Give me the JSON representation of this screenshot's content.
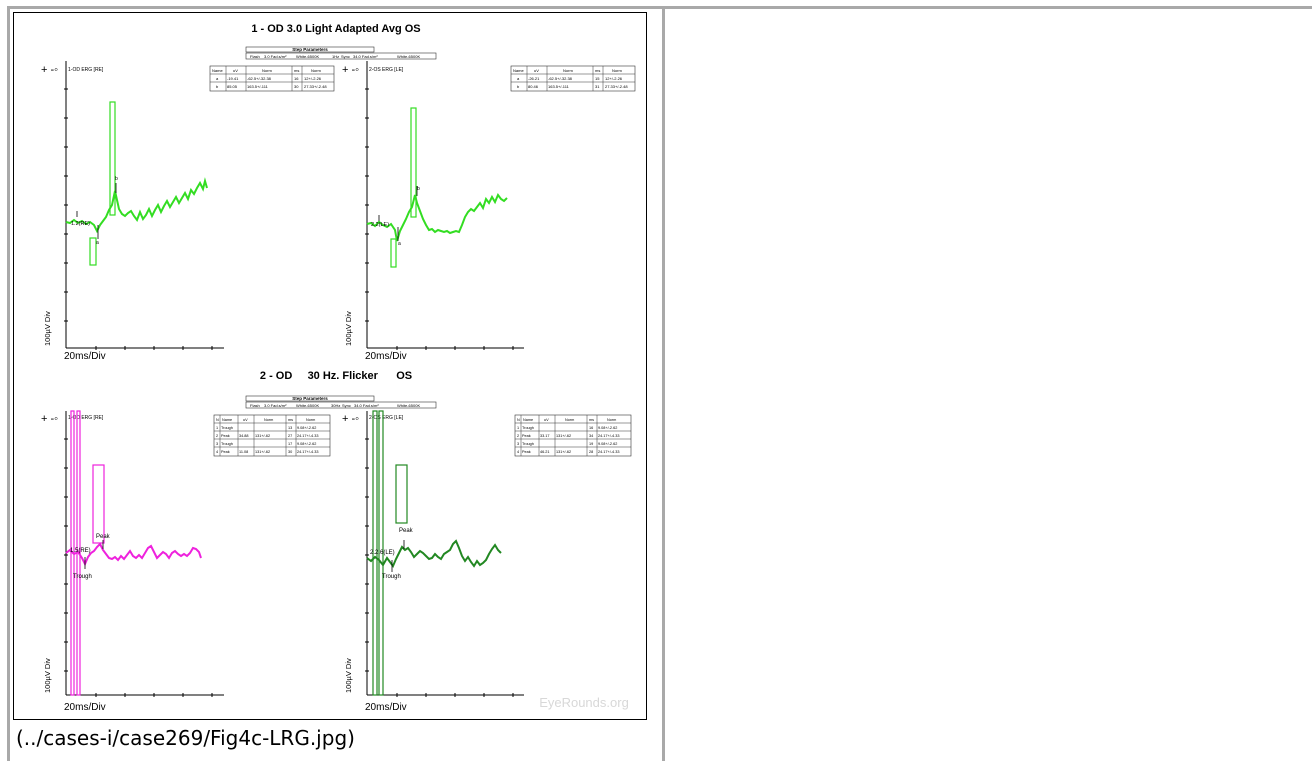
{
  "caption": "(../cases-i/case269/Fig4c-LRG.jpg)",
  "figure": {
    "watermark": "EyeRounds.org",
    "panel1": {
      "title": "1 - OD  3.0 Light Adapted Avg   OS",
      "step_params_title": "Step Parameters",
      "step_params_cells": [
        "Flash",
        "3.0 Fad.s/m²",
        "White-6500K",
        "1Hz",
        "Sync",
        "34.0 Fad.s/m²",
        "White-6500K"
      ],
      "left_trace_label": "1-OD ERG [RE]",
      "right_trace_label": "2-OS ERG [LE]",
      "left_marker": "1.2(RE)",
      "right_marker": "2.2(LE)",
      "wave_a": "a",
      "wave_b": "b",
      "x_scale": "20ms/Div",
      "y_scale": "100µV Div",
      "left_table": {
        "headers": [
          "Name",
          "uV",
          "Norm",
          "ms",
          "Norm"
        ],
        "rows": [
          [
            "a",
            "-19.41",
            "-62.5+/-32.38",
            "16",
            "12+/-2.26"
          ],
          [
            "b",
            "85.05",
            "163.5+/-111",
            "30",
            "27.33+/-2.48"
          ]
        ]
      },
      "right_table": {
        "headers": [
          "Name",
          "uV",
          "Norm",
          "ms",
          "Norm"
        ],
        "rows": [
          [
            "a",
            "-26.21",
            "-62.5+/-32.38",
            "15",
            "12+/-2.26"
          ],
          [
            "b",
            "80.46",
            "163.5+/-111",
            "31",
            "27.33+/-2.48"
          ]
        ]
      }
    },
    "panel2": {
      "title": "2 - OD     30 Hz. Flicker      OS",
      "step_params_title": "Step Parameters",
      "step_params_cells": [
        "Flash",
        "3.0 Fad.s/m²",
        "White-6500K",
        "30Hz",
        "Sync",
        "34.0 Fad.s/m²",
        "White-6500K"
      ],
      "left_trace_label": "1-OD ERG [RE]",
      "right_trace_label": "2-OS ERG [LE]",
      "left_marker": "1.5(RE)",
      "right_marker": "2.2.6(LE)",
      "peak": "Peak",
      "trough": "Trough",
      "x_scale": "20ms/Div",
      "y_scale": "100µV Div",
      "left_table": {
        "headers": [
          "N",
          "Name",
          "uV",
          "Norm",
          "ms",
          "Norm"
        ],
        "rows": [
          [
            "1",
            "Trough",
            "",
            "",
            "13",
            "9.08+/-2.62"
          ],
          [
            "2",
            "Peak",
            "34.88",
            "131+/-62",
            "27",
            "24.17+/-4.33"
          ],
          [
            "3",
            "Trough",
            "",
            "",
            "17",
            "9.08+/-2.62"
          ],
          [
            "4",
            "Peak",
            "11.08",
            "131+/-62",
            "30",
            "24.17+/-4.33"
          ]
        ]
      },
      "right_table": {
        "headers": [
          "N",
          "Name",
          "uV",
          "Norm",
          "ms",
          "Norm"
        ],
        "rows": [
          [
            "1",
            "Trough",
            "",
            "",
            "16",
            "9.08+/-2.62"
          ],
          [
            "2",
            "Peak",
            "33.17",
            "131+/-62",
            "34",
            "24.17+/-4.33"
          ],
          [
            "3",
            "Trough",
            "",
            "",
            "19",
            "9.08+/-2.62"
          ],
          [
            "4",
            "Peak",
            "46.21",
            "131+/-62",
            "28",
            "24.17+/-4.33"
          ]
        ]
      }
    },
    "colors": {
      "light_adapted": "#33dd22",
      "flicker_od": "#ee22dd",
      "flicker_os": "#228822"
    }
  }
}
